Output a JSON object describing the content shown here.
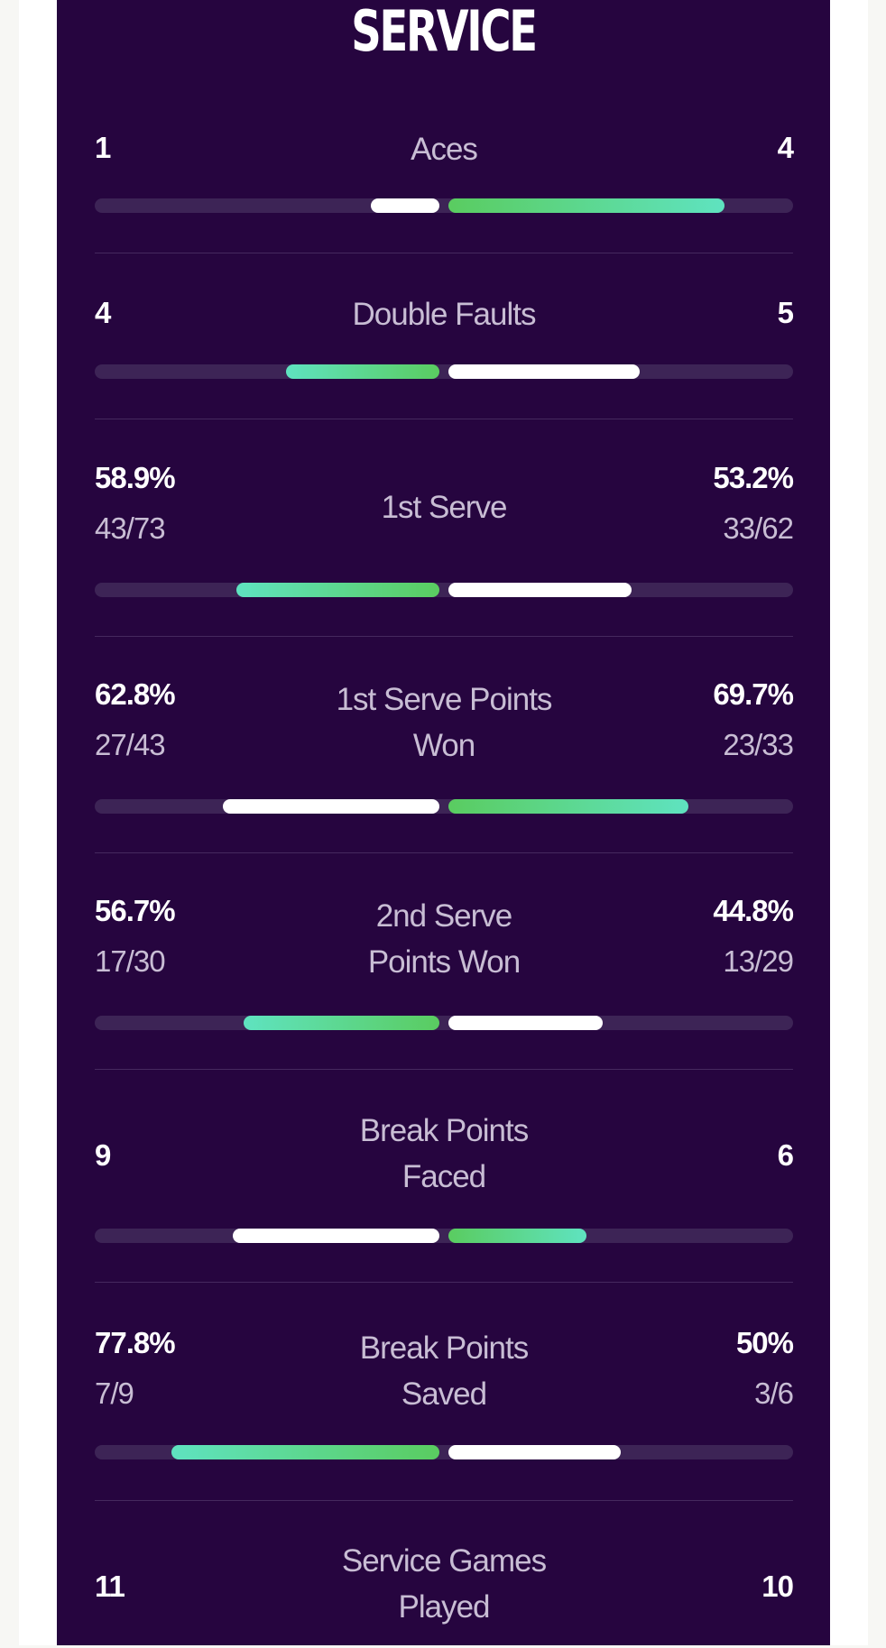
{
  "section_title": "SERVICE",
  "stats": [
    {
      "label": "Aces",
      "left_value": "1",
      "right_value": "4",
      "left_share": 0.2,
      "right_share": 0.8,
      "left_color": "white",
      "right_color": "green"
    },
    {
      "label": "Double Faults",
      "left_value": "4",
      "right_value": "5",
      "left_share": 0.444,
      "right_share": 0.556,
      "left_color": "green",
      "right_color": "white"
    },
    {
      "label": "1st Serve",
      "left_value": "58.9%",
      "left_detail": "43/73",
      "right_value": "53.2%",
      "right_detail": "33/62",
      "left_share": 0.589,
      "right_share": 0.532,
      "left_color": "green",
      "right_color": "white"
    },
    {
      "label": "1st Serve Points Won",
      "label_lines": [
        "1st Serve Points",
        "Won"
      ],
      "left_value": "62.8%",
      "left_detail": "27/43",
      "right_value": "69.7%",
      "right_detail": "23/33",
      "left_share": 0.628,
      "right_share": 0.697,
      "left_color": "white",
      "right_color": "green"
    },
    {
      "label": "2nd Serve Points Won",
      "label_lines": [
        "2nd Serve",
        "Points Won"
      ],
      "left_value": "56.7%",
      "left_detail": "17/30",
      "right_value": "44.8%",
      "right_detail": "13/29",
      "left_share": 0.567,
      "right_share": 0.448,
      "left_color": "green",
      "right_color": "white"
    },
    {
      "label": "Break Points Faced",
      "label_lines": [
        "Break Points",
        "Faced"
      ],
      "left_value": "9",
      "right_value": "6",
      "left_share": 0.6,
      "right_share": 0.4,
      "left_color": "white",
      "right_color": "green"
    },
    {
      "label": "Break Points Saved",
      "label_lines": [
        "Break Points",
        "Saved"
      ],
      "left_value": "77.8%",
      "left_detail": "7/9",
      "right_value": "50%",
      "right_detail": "3/6",
      "left_share": 0.778,
      "right_share": 0.5,
      "left_color": "green",
      "right_color": "white"
    },
    {
      "label": "Service Games Played",
      "label_lines": [
        "Service Games",
        "Played"
      ],
      "left_value": "11",
      "right_value": "10"
    }
  ],
  "colors": {
    "panel_background": "#26053f",
    "track": "#3d2456",
    "bar_white": "#ffffff",
    "bar_green": "#5acc60",
    "bar_teal": "#5fe3c0",
    "label_text": "#c8bdd4",
    "value_text": "#ffffff"
  }
}
